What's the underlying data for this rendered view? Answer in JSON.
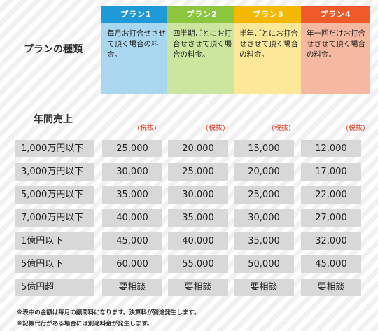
{
  "plan_section_label": "プランの種類",
  "plans": [
    {
      "name": "プラン1",
      "description": "毎月お打合せさせて頂く場合の料金。",
      "header_color": "#1f9ad8",
      "body_color": "#a9d7f0"
    },
    {
      "name": "プラン2",
      "description": "四半期ごとにお打合せさせて頂く場合の料金。",
      "header_color": "#8cc63f",
      "body_color": "#cce6a0"
    },
    {
      "name": "プラン3",
      "description": "半年ごとにお打合せさせて頂く場合の料金。",
      "header_color": "#f5b800",
      "body_color": "#fde899"
    },
    {
      "name": "プラン4",
      "description": "年一回だけお打合せさせて頂く場合の料金。",
      "header_color": "#ef5a28",
      "body_color": "#f6b8a0"
    }
  ],
  "annual_sales_label": "年間売上",
  "tax_note": "(税抜)",
  "rows": [
    {
      "label": "1,000万円以下",
      "prices": [
        "25,000",
        "20,000",
        "15,000",
        "12,000"
      ]
    },
    {
      "label": "3,000万円以下",
      "prices": [
        "30,000",
        "25,000",
        "20,000",
        "17,000"
      ]
    },
    {
      "label": "5,000万円以下",
      "prices": [
        "35,000",
        "30,000",
        "25,000",
        "22,000"
      ]
    },
    {
      "label": "7,000万円以下",
      "prices": [
        "40,000",
        "35,000",
        "30,000",
        "27,000"
      ]
    },
    {
      "label": "1億円以下",
      "prices": [
        "45,000",
        "40,000",
        "35,000",
        "32,000"
      ]
    },
    {
      "label": "5億円以下",
      "prices": [
        "60,000",
        "55,000",
        "50,000",
        "45,000"
      ]
    },
    {
      "label": "5億円超",
      "prices": [
        "要相談",
        "要相談",
        "要相談",
        "要相談"
      ]
    }
  ],
  "notes": [
    "※表中の金額は毎月の顧問料になります。決算料が別途発生します。",
    "※記帳代行がある場合には別途料金が発生します。"
  ]
}
